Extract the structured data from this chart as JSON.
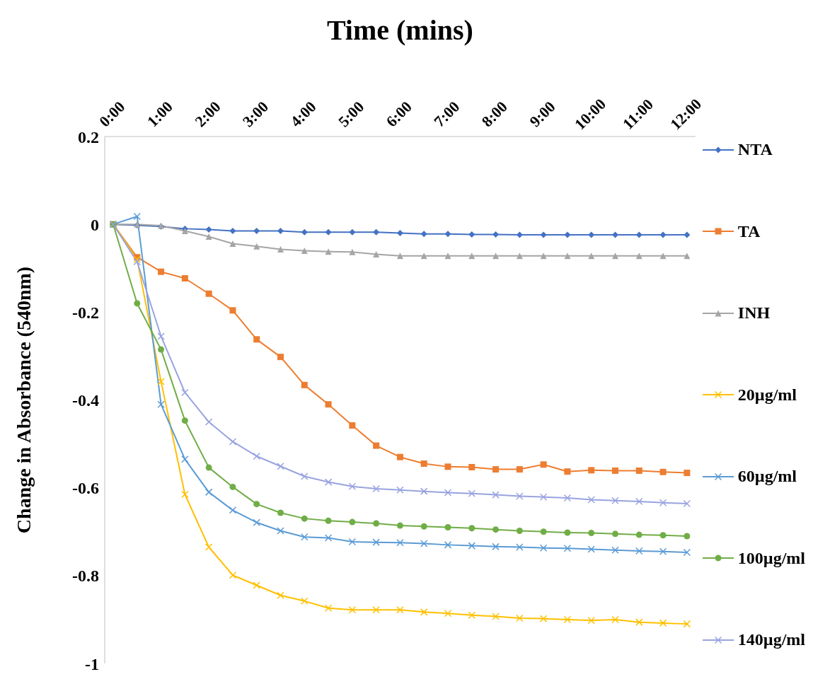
{
  "chart_data": {
    "type": "line",
    "xlabel": "Time (mins)",
    "ylabel": "Change  in Absorbance (540nm)",
    "categories": [
      "0:00",
      null,
      "1:00",
      null,
      "2:00",
      null,
      "3:00",
      null,
      "4:00",
      null,
      "5:00",
      null,
      "6:00",
      null,
      "7:00",
      null,
      "8:00",
      null,
      "9:00",
      null,
      "10:00",
      null,
      "11:00",
      null,
      "12:00"
    ],
    "ylim": [
      -1,
      0.2
    ],
    "yticks": [
      -1,
      -0.8,
      -0.6,
      -0.4,
      -0.2,
      0,
      0.2
    ],
    "grid": false,
    "legend": "right",
    "series": [
      {
        "name": "NTA",
        "color": "#4472c4",
        "marker": "diamond",
        "values": [
          0,
          -0.002,
          -0.005,
          -0.01,
          -0.012,
          -0.015,
          -0.015,
          -0.015,
          -0.018,
          -0.018,
          -0.018,
          -0.018,
          -0.02,
          -0.022,
          -0.022,
          -0.023,
          -0.023,
          -0.024,
          -0.024,
          -0.024,
          -0.024,
          -0.024,
          -0.024,
          -0.024,
          -0.024
        ]
      },
      {
        "name": "TA",
        "color": "#ed7d31",
        "marker": "square",
        "values": [
          0,
          -0.075,
          -0.108,
          -0.123,
          -0.158,
          -0.196,
          -0.262,
          -0.302,
          -0.366,
          -0.41,
          -0.458,
          -0.504,
          -0.53,
          -0.545,
          -0.552,
          -0.553,
          -0.558,
          -0.558,
          -0.547,
          -0.563,
          -0.56,
          -0.561,
          -0.561,
          -0.564,
          -0.566
        ]
      },
      {
        "name": "INH",
        "color": "#a5a5a5",
        "marker": "triangle",
        "values": [
          0,
          0,
          -0.003,
          -0.015,
          -0.028,
          -0.044,
          -0.05,
          -0.057,
          -0.06,
          -0.062,
          -0.063,
          -0.068,
          -0.072,
          -0.072,
          -0.072,
          -0.072,
          -0.072,
          -0.072,
          -0.072,
          -0.072,
          -0.072,
          -0.072,
          -0.072,
          -0.072,
          -0.072
        ]
      },
      {
        "name": "20µg/ml",
        "color": "#ffc000",
        "marker": "cross",
        "values": [
          0,
          -0.08,
          -0.358,
          -0.615,
          -0.735,
          -0.799,
          -0.822,
          -0.845,
          -0.858,
          -0.874,
          -0.878,
          -0.878,
          -0.878,
          -0.883,
          -0.886,
          -0.89,
          -0.893,
          -0.897,
          -0.898,
          -0.9,
          -0.902,
          -0.9,
          -0.906,
          -0.908,
          -0.91
        ]
      },
      {
        "name": "60µg/ml",
        "color": "#5b9bd5",
        "marker": "cross",
        "values": [
          0,
          0.018,
          -0.41,
          -0.535,
          -0.61,
          -0.651,
          -0.679,
          -0.698,
          -0.712,
          -0.714,
          -0.723,
          -0.724,
          -0.725,
          -0.727,
          -0.73,
          -0.732,
          -0.734,
          -0.735,
          -0.737,
          -0.738,
          -0.74,
          -0.742,
          -0.744,
          -0.745,
          -0.747
        ]
      },
      {
        "name": "100µg/ml",
        "color": "#70ad47",
        "marker": "circle",
        "values": [
          0,
          -0.18,
          -0.285,
          -0.447,
          -0.554,
          -0.598,
          -0.637,
          -0.657,
          -0.67,
          -0.675,
          -0.678,
          -0.681,
          -0.686,
          -0.688,
          -0.69,
          -0.692,
          -0.695,
          -0.698,
          -0.7,
          -0.702,
          -0.703,
          -0.705,
          -0.707,
          -0.708,
          -0.71
        ]
      },
      {
        "name": "140µg/ml",
        "color": "#99a3e0",
        "marker": "cross",
        "values": [
          0,
          -0.085,
          -0.255,
          -0.383,
          -0.45,
          -0.495,
          -0.528,
          -0.551,
          -0.574,
          -0.587,
          -0.597,
          -0.602,
          -0.605,
          -0.608,
          -0.611,
          -0.613,
          -0.616,
          -0.619,
          -0.621,
          -0.623,
          -0.627,
          -0.629,
          -0.631,
          -0.634,
          -0.636
        ]
      }
    ]
  }
}
